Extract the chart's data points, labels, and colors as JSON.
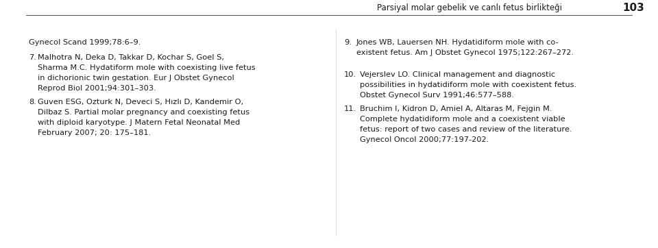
{
  "background_color": "#ffffff",
  "header_text": "Parsiyal molar gebelik ve canlı fetus birlikteği",
  "header_number": "103",
  "header_fontsize": 8.5,
  "header_number_fontsize": 11,
  "left_column": [
    "Gynecol Scand 1999;78:6–9.",
    "7.  Malhotra N, Deka D, Takkar D, Kochar S, Goel S,\n    Sharma M.C. Hydatiform mole with coexisting live fetus\n    in dichorionic twin gestation. Eur J Obstet Gynecol\n    Reprod Biol 2001;94:301–303.",
    "8.  Guven ESG, Ozturk N, Deveci S, Hızlı D, Kandemir O,\n    Dilbaz S. Partial molar pregnancy and coexisting fetus\n    with diploid karyotype. J Matern Fetal Neonatal Med\n    February 2007; 20: 175–181."
  ],
  "right_column": [
    "9.  Jones WB, Lauersen NH. Hydatidiform mole with co-\n    existent fetus. Am J Obstet Gynecol 1975;122:267–272.",
    "10. Vejerslev LO. Clinical management and diagnostic\n    possibilities in hydatidiform mole with coexistent fetus.\n    Obstet Gynecol Surv 1991;46:577–588.",
    "11. Bruchim I, Kidron D, Amiel A, Altaras M, Fejgin M.\n    Complete hydatidiform mole and a coexistent viable\n    fetus: report of two cases and review of the literature.\n    Gynecol Oncol 2000;77:197-202."
  ],
  "text_color": "#1a1a1a",
  "text_fontsize": 8.2,
  "font_family": "DejaVu Sans"
}
